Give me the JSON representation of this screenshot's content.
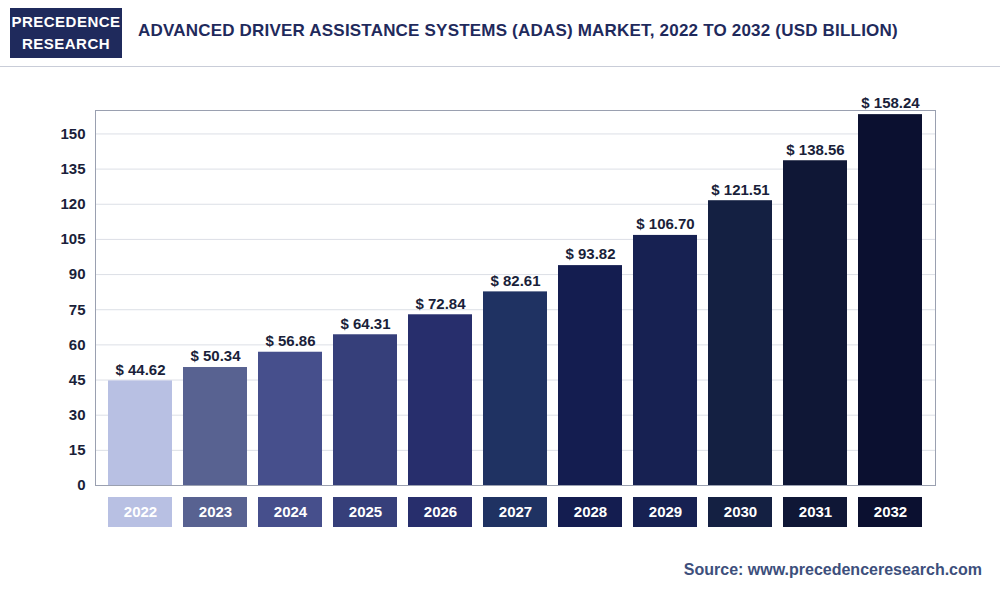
{
  "chart_data": {
    "type": "bar",
    "title": "ADVANCED DRIVER ASSISTANCE SYSTEMS (ADAS) MARKET, 2022 TO 2032 (USD BILLION)",
    "logo": [
      "PRECEDENCE",
      "RESEARCH"
    ],
    "source": "Source: www.precedenceresearch.com",
    "categories": [
      "2022",
      "2023",
      "2024",
      "2025",
      "2026",
      "2027",
      "2028",
      "2029",
      "2030",
      "2031",
      "2032"
    ],
    "values": [
      44.62,
      50.34,
      56.86,
      64.31,
      72.84,
      82.61,
      93.82,
      106.7,
      121.51,
      138.56,
      158.24
    ],
    "value_labels": [
      "$ 44.62",
      "$ 50.34",
      "$ 56.86",
      "$ 64.31",
      "$ 72.84",
      "$ 82.61",
      "$ 93.82",
      "$ 106.70",
      "$ 121.51",
      "$ 138.56",
      "$ 158.24"
    ],
    "colors": [
      "#b8c0e3",
      "#586291",
      "#464f8c",
      "#363f7a",
      "#272e6c",
      "#1f3262",
      "#141d50",
      "#172152",
      "#142042",
      "#0f1736",
      "#0b1030"
    ],
    "ylim": [
      0,
      160
    ],
    "yticks": [
      0,
      15,
      30,
      45,
      60,
      75,
      90,
      105,
      120,
      135,
      150
    ],
    "grid": true,
    "data_labels": true
  }
}
